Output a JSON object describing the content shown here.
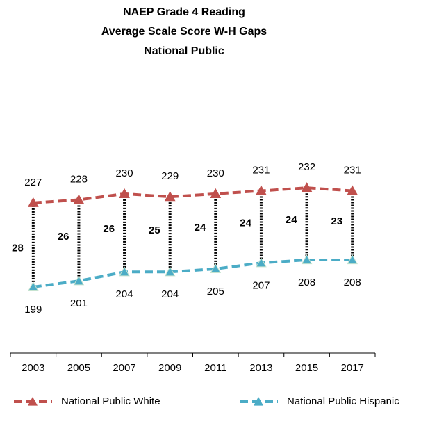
{
  "chart_data": {
    "type": "line",
    "title": [
      "NAEP Grade 4 Reading",
      "Average Scale Score W-H Gaps",
      "National Public"
    ],
    "categories": [
      "2003",
      "2005",
      "2007",
      "2009",
      "2011",
      "2013",
      "2015",
      "2017"
    ],
    "series": [
      {
        "name": "National Public White",
        "color": "#c0504d",
        "values": [
          227,
          228,
          230,
          229,
          230,
          231,
          232,
          231
        ]
      },
      {
        "name": "National Public Hispanic",
        "color": "#4bacc6",
        "values": [
          199,
          201,
          204,
          204,
          205,
          207,
          208,
          208
        ]
      }
    ],
    "gaps": [
      28,
      26,
      26,
      25,
      24,
      24,
      24,
      23
    ],
    "ylim": [
      177,
      245
    ]
  }
}
